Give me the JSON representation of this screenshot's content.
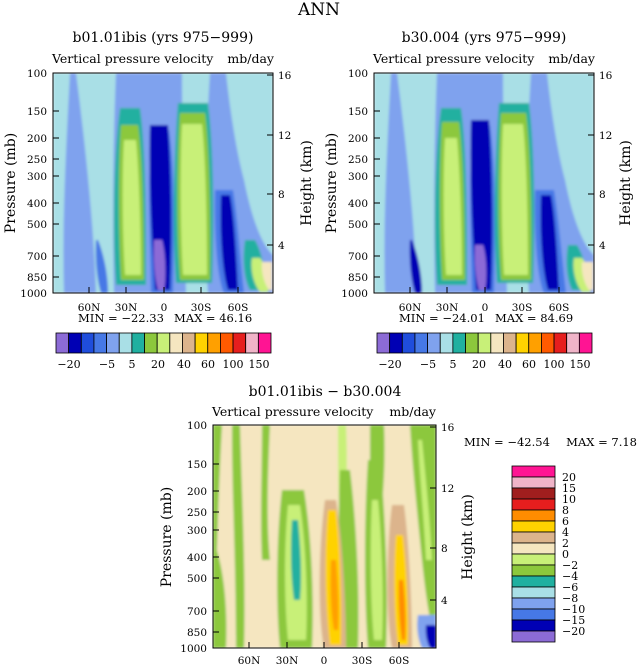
{
  "page_title": "ANN",
  "common": {
    "y_left_label": "Pressure (mb)",
    "y_right_label": "Height (km)",
    "pressure_ticks": [
      "100",
      "150",
      "200",
      "250",
      "300",
      "400",
      "500",
      "700",
      "850",
      "1000"
    ],
    "height_ticks": [
      "16",
      "12",
      "8",
      "4"
    ],
    "lat_ticks": [
      "60N",
      "30N",
      "0",
      "30S",
      "60S"
    ]
  },
  "colors": {
    "model_levels": [
      "#8c6bd6",
      "#0000b4",
      "#1f4ddc",
      "#4678e6",
      "#7fa2ee",
      "#a9dfe6",
      "#20b0a0",
      "#8cc83c",
      "#c8f078",
      "#f5e6c0",
      "#dcb48c",
      "#ffd200",
      "#ffa000",
      "#ff5a00",
      "#e61e1e",
      "#f0b4c8",
      "#ff1493"
    ],
    "diff_levels": [
      "#8c6bd6",
      "#0000b4",
      "#4678e6",
      "#7fa2ee",
      "#a9dfe6",
      "#20b0a0",
      "#8cc83c",
      "#c8f078",
      "#f5e6c0",
      "#dcb48c",
      "#ffd200",
      "#ff8c00",
      "#e61e1e",
      "#a01e1e",
      "#f0b4c8",
      "#ff1493"
    ]
  },
  "panels": [
    {
      "title": "b01.01ibis (yrs 975−999)",
      "subtitle": "Vertical pressure velocity",
      "units": "mb/day",
      "min_label": "MIN = −22.33",
      "max_label": "MAX = 46.16"
    },
    {
      "title": "b30.004 (yrs 975−999)",
      "subtitle": "Vertical pressure velocity",
      "units": "mb/day",
      "min_label": "MIN = −24.01",
      "max_label": "MAX = 84.69"
    },
    {
      "title": "b01.01ibis − b30.004",
      "subtitle": "Vertical pressure velocity",
      "units": "mb/day",
      "min_label": "MIN = −42.54",
      "max_label": "MAX = 7.18"
    }
  ],
  "model_colorbar_labels": [
    "−20",
    "−5",
    "5",
    "20",
    "40",
    "60",
    "100",
    "150"
  ],
  "diff_colorbar_labels": [
    "20",
    "15",
    "10",
    "8",
    "6",
    "4",
    "2",
    "0",
    "−2",
    "−4",
    "−6",
    "−8",
    "−10",
    "−15",
    "−20"
  ],
  "chart_data": [
    {
      "type": "heatmap",
      "title": "b01.01ibis (yrs 975−999)",
      "subtitle": "Vertical pressure velocity",
      "units": "mb/day",
      "ylabel": "Pressure (mb)",
      "ylabel_right": "Height (km)",
      "x_ticks": [
        "60N",
        "30N",
        "0",
        "30S",
        "60S"
      ],
      "y_ticks": [
        "100",
        "150",
        "200",
        "250",
        "300",
        "400",
        "500",
        "700",
        "850",
        "1000"
      ],
      "y_scale": "log",
      "y_inverted": true,
      "min": -22.33,
      "max": 46.16,
      "levels": [
        -20,
        -15,
        -10,
        -5,
        -2,
        5,
        10,
        20,
        30,
        40,
        50,
        60,
        80,
        100,
        120,
        150
      ]
    },
    {
      "type": "heatmap",
      "title": "b30.004 (yrs 975−999)",
      "subtitle": "Vertical pressure velocity",
      "units": "mb/day",
      "ylabel": "Pressure (mb)",
      "ylabel_right": "Height (km)",
      "x_ticks": [
        "60N",
        "30N",
        "0",
        "30S",
        "60S"
      ],
      "y_ticks": [
        "100",
        "150",
        "200",
        "250",
        "300",
        "400",
        "500",
        "700",
        "850",
        "1000"
      ],
      "y_scale": "log",
      "y_inverted": true,
      "min": -24.01,
      "max": 84.69,
      "levels": [
        -20,
        -15,
        -10,
        -5,
        -2,
        5,
        10,
        20,
        30,
        40,
        50,
        60,
        80,
        100,
        120,
        150
      ]
    },
    {
      "type": "heatmap",
      "title": "b01.01ibis − b30.004",
      "subtitle": "Vertical pressure velocity",
      "units": "mb/day",
      "ylabel": "Pressure (mb)",
      "ylabel_right": "Height (km)",
      "x_ticks": [
        "60N",
        "30N",
        "0",
        "30S",
        "60S"
      ],
      "y_ticks": [
        "100",
        "150",
        "200",
        "250",
        "300",
        "400",
        "500",
        "700",
        "850",
        "1000"
      ],
      "y_scale": "log",
      "y_inverted": true,
      "min": -42.54,
      "max": 7.18,
      "levels": [
        -20,
        -15,
        -10,
        -8,
        -6,
        -4,
        -2,
        0,
        2,
        4,
        6,
        8,
        10,
        15,
        20
      ]
    }
  ]
}
